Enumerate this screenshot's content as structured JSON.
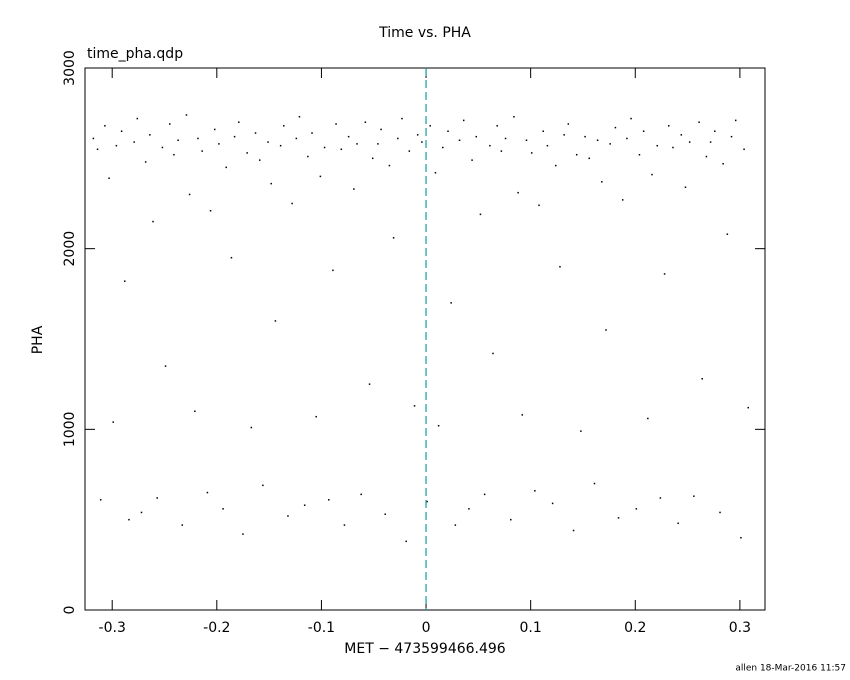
{
  "chart_data": {
    "type": "scatter",
    "title": "Time vs. PHA",
    "subtitle": "time_pha.qdp",
    "x_label": "MET − 473599466.496",
    "y_label": "PHA",
    "footer": "allen 18-Mar-2016 11:57",
    "color": "#000000",
    "vline": 0,
    "vline_color": "#1a9aa0",
    "xlim": [
      -0.326,
      0.324
    ],
    "ylim": [
      0,
      3000
    ],
    "xticks": [
      -0.3,
      -0.2,
      -0.1,
      0,
      0.1,
      0.2,
      0.3
    ],
    "yticks": [
      0,
      1000,
      2000,
      3000
    ],
    "x": [
      -0.318,
      -0.314,
      -0.311,
      -0.307,
      -0.303,
      -0.299,
      -0.296,
      -0.291,
      -0.288,
      -0.284,
      -0.279,
      -0.276,
      -0.272,
      -0.268,
      -0.264,
      -0.261,
      -0.257,
      -0.252,
      -0.249,
      -0.245,
      -0.241,
      -0.237,
      -0.233,
      -0.229,
      -0.226,
      -0.221,
      -0.218,
      -0.214,
      -0.209,
      -0.206,
      -0.202,
      -0.198,
      -0.194,
      -0.191,
      -0.186,
      -0.183,
      -0.179,
      -0.175,
      -0.171,
      -0.167,
      -0.163,
      -0.159,
      -0.156,
      -0.151,
      -0.148,
      -0.144,
      -0.139,
      -0.136,
      -0.132,
      -0.128,
      -0.124,
      -0.121,
      -0.116,
      -0.113,
      -0.109,
      -0.105,
      -0.101,
      -0.097,
      -0.093,
      -0.089,
      -0.086,
      -0.081,
      -0.078,
      -0.074,
      -0.069,
      -0.066,
      -0.062,
      -0.058,
      -0.054,
      -0.051,
      -0.046,
      -0.043,
      -0.039,
      -0.035,
      -0.031,
      -0.027,
      -0.023,
      -0.019,
      -0.016,
      -0.011,
      -0.008,
      -0.004,
      0.001,
      0.004,
      0.009,
      0.012,
      0.016,
      0.021,
      0.024,
      0.028,
      0.032,
      0.036,
      0.041,
      0.044,
      0.048,
      0.052,
      0.056,
      0.061,
      0.064,
      0.068,
      0.072,
      0.076,
      0.081,
      0.084,
      0.088,
      0.092,
      0.096,
      0.101,
      0.104,
      0.108,
      0.112,
      0.116,
      0.121,
      0.124,
      0.128,
      0.132,
      0.136,
      0.141,
      0.144,
      0.148,
      0.152,
      0.156,
      0.161,
      0.164,
      0.168,
      0.172,
      0.176,
      0.181,
      0.184,
      0.188,
      0.192,
      0.196,
      0.201,
      0.204,
      0.208,
      0.212,
      0.216,
      0.221,
      0.224,
      0.228,
      0.232,
      0.236,
      0.241,
      0.244,
      0.248,
      0.252,
      0.256,
      0.261,
      0.264,
      0.268,
      0.272,
      0.276,
      0.281,
      0.284,
      0.288,
      0.292,
      0.296,
      0.301,
      0.304,
      0.308
    ],
    "values": [
      2610,
      2550,
      610,
      2680,
      2390,
      1040,
      2570,
      2650,
      1820,
      500,
      2590,
      2720,
      540,
      2480,
      2630,
      2150,
      620,
      2560,
      1350,
      2690,
      2520,
      2600,
      470,
      2740,
      2300,
      1100,
      2610,
      2540,
      650,
      2210,
      2660,
      2580,
      560,
      2450,
      1950,
      2620,
      2700,
      420,
      2530,
      1010,
      2640,
      2490,
      690,
      2590,
      2360,
      1600,
      2570,
      2680,
      520,
      2250,
      2610,
      2730,
      580,
      2510,
      2640,
      1070,
      2400,
      2560,
      610,
      1880,
      2690,
      2550,
      470,
      2620,
      2330,
      2580,
      640,
      2700,
      1250,
      2500,
      2580,
      2660,
      530,
      2460,
      2060,
      2610,
      2720,
      380,
      2540,
      1130,
      2630,
      2590,
      600,
      2680,
      2420,
      1020,
      2560,
      2650,
      1700,
      470,
      2600,
      2710,
      560,
      2490,
      2620,
      2190,
      640,
      2570,
      1420,
      2680,
      2540,
      2610,
      500,
      2730,
      2310,
      1080,
      2600,
      2530,
      660,
      2240,
      2650,
      2570,
      590,
      2460,
      1900,
      2630,
      2690,
      440,
      2520,
      990,
      2620,
      2500,
      700,
      2600,
      2370,
      1550,
      2580,
      2670,
      510,
      2270,
      2610,
      2720,
      560,
      2520,
      2650,
      1060,
      2410,
      2570,
      620,
      1860,
      2680,
      2560,
      480,
      2630,
      2340,
      2590,
      630,
      2700,
      1280,
      2510,
      2590,
      2650,
      540,
      2470,
      2080,
      2620,
      2710,
      400,
      2550,
      1120
    ]
  }
}
